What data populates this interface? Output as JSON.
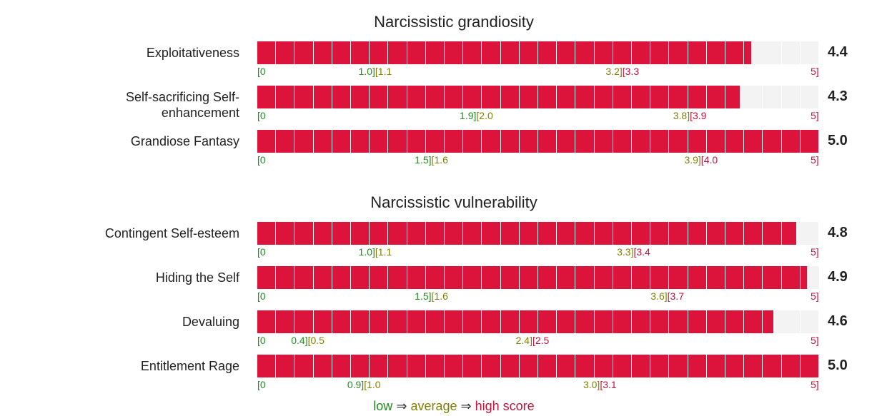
{
  "chart_data": {
    "type": "bar",
    "xlim": [
      0,
      5
    ],
    "groups": [
      {
        "title": "Narcissistic grandiosity",
        "rows": [
          {
            "label": "Exploitativeness",
            "score": 4.4,
            "score_text": "4.4",
            "low": "0",
            "low_end": "1.0",
            "avg_start": "1.1",
            "avg_end": "3.2",
            "high_start": "3.3",
            "high": "5"
          },
          {
            "label": "Self-sacrificing Self-enhancement",
            "score": 4.3,
            "score_text": "4.3",
            "low": "0",
            "low_end": "1.9",
            "avg_start": "2.0",
            "avg_end": "3.8",
            "high_start": "3.9",
            "high": "5"
          },
          {
            "label": "Grandiose Fantasy",
            "score": 5.0,
            "score_text": "5.0",
            "low": "0",
            "low_end": "1.5",
            "avg_start": "1.6",
            "avg_end": "3.9",
            "high_start": "4.0",
            "high": "5"
          }
        ]
      },
      {
        "title": "Narcissistic vulnerability",
        "rows": [
          {
            "label": "Contingent Self-esteem",
            "score": 4.8,
            "score_text": "4.8",
            "low": "0",
            "low_end": "1.0",
            "avg_start": "1.1",
            "avg_end": "3.3",
            "high_start": "3.4",
            "high": "5"
          },
          {
            "label": "Hiding the Self",
            "score": 4.9,
            "score_text": "4.9",
            "low": "0",
            "low_end": "1.5",
            "avg_start": "1.6",
            "avg_end": "3.6",
            "high_start": "3.7",
            "high": "5"
          },
          {
            "label": "Devaluing",
            "score": 4.6,
            "score_text": "4.6",
            "low": "0",
            "low_end": "0.4",
            "avg_start": "0.5",
            "avg_end": "2.4",
            "high_start": "2.5",
            "high": "5"
          },
          {
            "label": "Entitlement Rage",
            "score": 5.0,
            "score_text": "5.0",
            "low": "0",
            "low_end": "0.9",
            "avg_start": "1.0",
            "avg_end": "3.0",
            "high_start": "3.1",
            "high": "5"
          }
        ]
      }
    ],
    "legend": {
      "low": "low",
      "average": "average",
      "high": "high score",
      "arrow": "⇒"
    },
    "colors": {
      "bar": "#dc143c",
      "track": "#f3f3f3",
      "low": "#228b22",
      "average": "#808000",
      "high": "#c0143c"
    }
  }
}
